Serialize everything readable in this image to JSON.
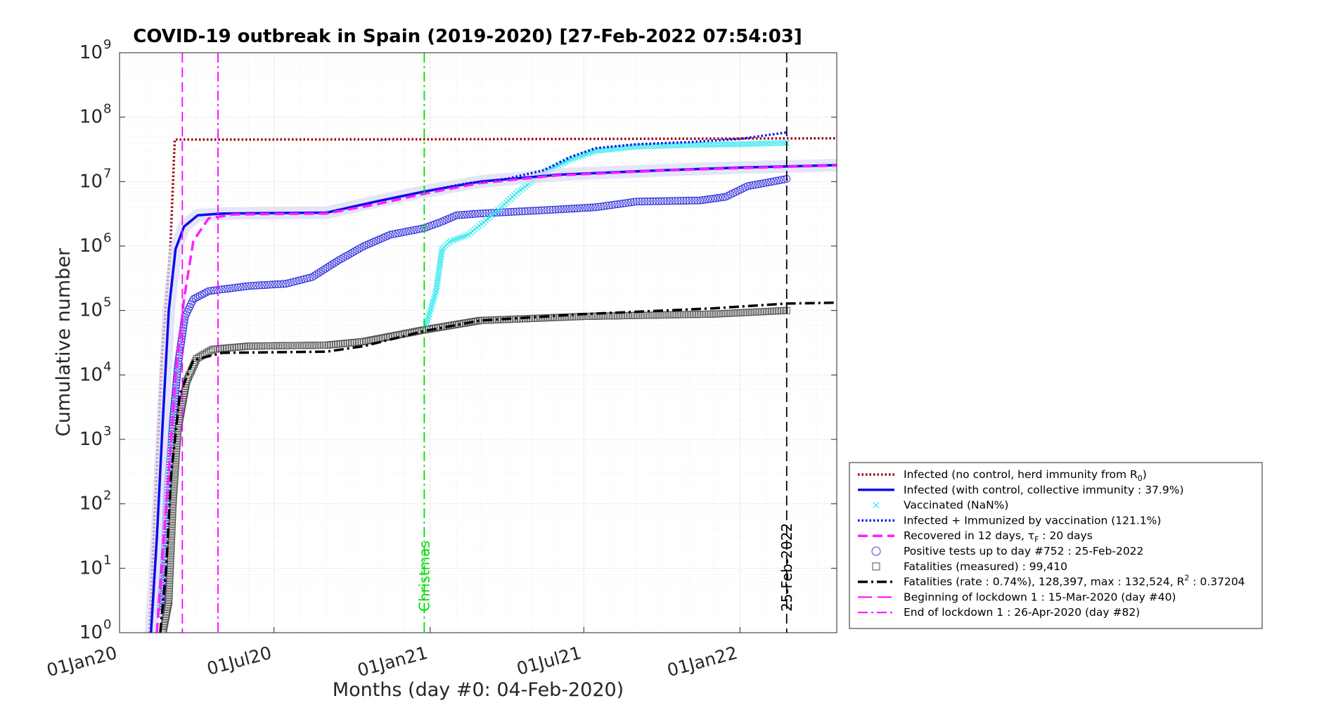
{
  "chart_data": {
    "type": "line",
    "title": "COVID-19 outbreak in Spain (2019-2020) [27-Feb-2022 07:54:03]",
    "xlabel": "Months (day #0: 04-Feb-2020)",
    "ylabel": "Cumulative number",
    "y_scale": "log",
    "ylim": [
      1,
      1000000000
    ],
    "xlim": [
      "2020-01-01",
      "2022-04-25"
    ],
    "grid": true,
    "legend_position": "bottom-right",
    "x_ticks": [
      {
        "date": "2020-01-01",
        "label": "01Jan20"
      },
      {
        "date": "2020-07-01",
        "label": "01Jul20"
      },
      {
        "date": "2021-01-01",
        "label": "01Jan21"
      },
      {
        "date": "2021-07-01",
        "label": "01Jul21"
      },
      {
        "date": "2022-01-01",
        "label": "01Jan22"
      }
    ],
    "y_ticks": [
      {
        "base": "10",
        "exp": "0",
        "value": 1
      },
      {
        "base": "10",
        "exp": "1",
        "value": 10
      },
      {
        "base": "10",
        "exp": "2",
        "value": 100
      },
      {
        "base": "10",
        "exp": "3",
        "value": 1000
      },
      {
        "base": "10",
        "exp": "4",
        "value": 10000
      },
      {
        "base": "10",
        "exp": "5",
        "value": 100000
      },
      {
        "base": "10",
        "exp": "6",
        "value": 1000000
      },
      {
        "base": "10",
        "exp": "7",
        "value": 10000000
      },
      {
        "base": "10",
        "exp": "8",
        "value": 100000000
      },
      {
        "base": "10",
        "exp": "9",
        "value": 1000000000
      }
    ],
    "vertical_lines": [
      {
        "date": "2020-03-15",
        "color": "#ff00ff",
        "style": "dash"
      },
      {
        "date": "2020-04-26",
        "color": "#ff00ff",
        "style": "dashdot"
      },
      {
        "date": "2020-12-25",
        "color": "#00dd00",
        "style": "dashdot",
        "label": "Christmas"
      },
      {
        "date": "2022-02-25",
        "color": "#000000",
        "style": "dash",
        "label": "25-Feb-2022"
      }
    ],
    "series": [
      {
        "key": "no_control",
        "color": "#a00014",
        "style": "dot",
        "points": [
          [
            "2020-02-05",
            1
          ],
          [
            "2020-02-20",
            20000
          ],
          [
            "2020-03-01",
            1000000
          ],
          [
            "2020-03-06",
            45000000
          ],
          [
            "2020-06-01",
            45000000
          ],
          [
            "2021-03-01",
            45500000
          ],
          [
            "2022-04-25",
            47000000
          ]
        ]
      },
      {
        "key": "with_control",
        "color": "#0a0aee",
        "style": "solid",
        "points": [
          [
            "2020-02-07",
            1
          ],
          [
            "2020-02-14",
            30
          ],
          [
            "2020-02-21",
            2000
          ],
          [
            "2020-02-28",
            100000
          ],
          [
            "2020-03-07",
            900000
          ],
          [
            "2020-03-17",
            2000000
          ],
          [
            "2020-04-02",
            3000000
          ],
          [
            "2020-05-01",
            3200000
          ],
          [
            "2020-09-01",
            3300000
          ],
          [
            "2020-11-01",
            5000000
          ],
          [
            "2020-12-25",
            7000000
          ],
          [
            "2021-03-01",
            10000000
          ],
          [
            "2021-06-01",
            12800000
          ],
          [
            "2021-10-01",
            15000000
          ],
          [
            "2022-01-01",
            16500000
          ],
          [
            "2022-04-25",
            18000000
          ]
        ]
      },
      {
        "key": "vaccinated",
        "color": "#2ee8ee",
        "style": "cross",
        "points": [
          [
            "2020-12-27",
            60000
          ],
          [
            "2021-01-08",
            200000
          ],
          [
            "2021-01-15",
            900000
          ],
          [
            "2021-01-25",
            1200000
          ],
          [
            "2021-02-15",
            1500000
          ],
          [
            "2021-03-15",
            3000000
          ],
          [
            "2021-04-15",
            7000000
          ],
          [
            "2021-05-15",
            14000000
          ],
          [
            "2021-06-15",
            22000000
          ],
          [
            "2021-07-15",
            30000000
          ],
          [
            "2021-09-01",
            35000000
          ],
          [
            "2021-11-01",
            37000000
          ],
          [
            "2022-01-01",
            38000000
          ],
          [
            "2022-02-25",
            40000000
          ]
        ]
      },
      {
        "key": "infected_immunized",
        "color": "#1010ee",
        "style": "dot",
        "points": [
          [
            "2020-12-25",
            7000000
          ],
          [
            "2021-02-15",
            9500000
          ],
          [
            "2021-04-01",
            11000000
          ],
          [
            "2021-05-15",
            15000000
          ],
          [
            "2021-06-15",
            24000000
          ],
          [
            "2021-07-15",
            33000000
          ],
          [
            "2021-09-01",
            38000000
          ],
          [
            "2021-11-01",
            41000000
          ],
          [
            "2022-01-01",
            46000000
          ],
          [
            "2022-02-25",
            58000000
          ]
        ]
      },
      {
        "key": "recovered",
        "color": "#ff1fff",
        "style": "dash",
        "points": [
          [
            "2020-02-14",
            1
          ],
          [
            "2020-02-21",
            20
          ],
          [
            "2020-02-28",
            300
          ],
          [
            "2020-03-07",
            10000
          ],
          [
            "2020-03-17",
            150000
          ],
          [
            "2020-03-28",
            1200000
          ],
          [
            "2020-04-15",
            2700000
          ],
          [
            "2020-05-15",
            3100000
          ],
          [
            "2020-09-01",
            3200000
          ],
          [
            "2020-11-01",
            4500000
          ],
          [
            "2020-12-25",
            6500000
          ],
          [
            "2021-03-01",
            9500000
          ],
          [
            "2021-06-01",
            12500000
          ],
          [
            "2021-10-01",
            14800000
          ],
          [
            "2022-01-01",
            16200000
          ],
          [
            "2022-04-25",
            17800000
          ]
        ]
      },
      {
        "key": "positive_tests",
        "color": "#3b3bdf",
        "style": "circle",
        "points": [
          [
            "2020-02-18",
            2
          ],
          [
            "2020-02-22",
            10
          ],
          [
            "2020-02-27",
            200
          ],
          [
            "2020-03-04",
            2000
          ],
          [
            "2020-03-10",
            15000
          ],
          [
            "2020-03-18",
            80000
          ],
          [
            "2020-03-28",
            150000
          ],
          [
            "2020-04-15",
            200000
          ],
          [
            "2020-06-01",
            240000
          ],
          [
            "2020-07-15",
            260000
          ],
          [
            "2020-08-15",
            330000
          ],
          [
            "2020-09-15",
            600000
          ],
          [
            "2020-10-15",
            1000000
          ],
          [
            "2020-11-15",
            1500000
          ],
          [
            "2020-12-25",
            1900000
          ],
          [
            "2021-01-15",
            2400000
          ],
          [
            "2021-02-01",
            3000000
          ],
          [
            "2021-03-01",
            3200000
          ],
          [
            "2021-06-01",
            3700000
          ],
          [
            "2021-07-15",
            4000000
          ],
          [
            "2021-09-01",
            4900000
          ],
          [
            "2021-11-15",
            5100000
          ],
          [
            "2021-12-15",
            5800000
          ],
          [
            "2022-01-10",
            8500000
          ],
          [
            "2022-02-25",
            11000000
          ]
        ]
      },
      {
        "key": "fatalities_measured",
        "color": "#555555",
        "style": "square",
        "points": [
          [
            "2020-02-21",
            1
          ],
          [
            "2020-02-28",
            3
          ],
          [
            "2020-03-04",
            100
          ],
          [
            "2020-03-10",
            1500
          ],
          [
            "2020-03-20",
            8000
          ],
          [
            "2020-04-01",
            18000
          ],
          [
            "2020-04-20",
            25000
          ],
          [
            "2020-06-01",
            28000
          ],
          [
            "2020-09-01",
            29000
          ],
          [
            "2020-10-15",
            33000
          ],
          [
            "2020-12-25",
            50000
          ],
          [
            "2021-03-01",
            70000
          ],
          [
            "2021-07-01",
            81000
          ],
          [
            "2021-12-01",
            88000
          ],
          [
            "2022-02-25",
            100000
          ]
        ]
      },
      {
        "key": "fatalities_fit",
        "color": "#000000",
        "style": "dashdot",
        "points": [
          [
            "2020-02-18",
            1
          ],
          [
            "2020-02-25",
            10
          ],
          [
            "2020-03-02",
            300
          ],
          [
            "2020-03-12",
            5000
          ],
          [
            "2020-03-28",
            17000
          ],
          [
            "2020-05-01",
            22000
          ],
          [
            "2020-09-01",
            23000
          ],
          [
            "2020-10-15",
            28000
          ],
          [
            "2020-12-25",
            48000
          ],
          [
            "2021-03-01",
            70000
          ],
          [
            "2021-07-01",
            88000
          ],
          [
            "2021-12-01",
            108000
          ],
          [
            "2022-02-25",
            128000
          ],
          [
            "2022-04-25",
            132524
          ]
        ]
      }
    ],
    "legend": [
      {
        "key": "no_control",
        "label": "Infected (no control, herd immunity from R",
        "sub": "0",
        "tail": ")"
      },
      {
        "key": "with_control",
        "label": "Infected (with control, collective immunity : 37.9%)"
      },
      {
        "key": "vaccinated",
        "label": "Vaccinated (NaN%)"
      },
      {
        "key": "infected_immunized",
        "label": "Infected + Immunized by vaccination (121.1%)"
      },
      {
        "key": "recovered",
        "label": "Recovered in 12 days, τ",
        "sub": "F",
        "tail": " : 20 days"
      },
      {
        "key": "positive_tests",
        "label": "Positive tests up to day #752 : 25-Feb-2022"
      },
      {
        "key": "fatalities_measured",
        "label": "Fatalities (measured) : 99,410"
      },
      {
        "key": "fatalities_fit",
        "label": "Fatalities (rate : 0.74%), 128,397, max : 132,524, R",
        "sup": "2",
        "tail": " : 0.37204"
      },
      {
        "key": "lockdown_begin",
        "color": "#ff00ff",
        "style": "longdash",
        "label": "Beginning of lockdown 1 : 15-Mar-2020 (day #40)"
      },
      {
        "key": "lockdown_end",
        "color": "#ff00ff",
        "style": "dashdot",
        "label": "End of lockdown 1 : 26-Apr-2020 (day #82)"
      }
    ]
  }
}
